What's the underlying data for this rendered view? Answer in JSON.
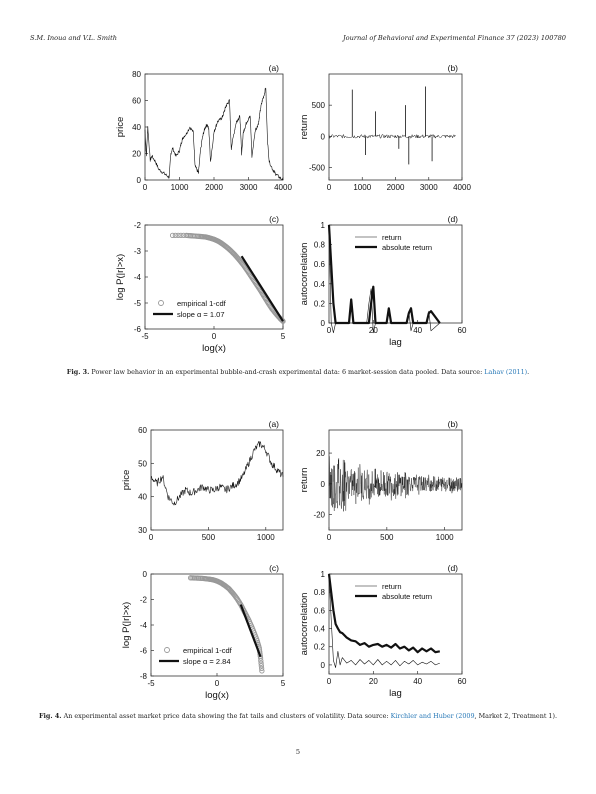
{
  "header": {
    "left": "S.M. Inoua and V.L. Smith",
    "right": "Journal of Behavioral and Experimental Finance 37 (2023) 100780"
  },
  "figures": [
    {
      "label": "Fig. 3.",
      "caption": "Power law behavior in an experimental bubble-and-crash experimental data: 6 market-session data pooled. Data source: ",
      "source_link": "Lahav (2011)",
      "caption_tail": "."
    },
    {
      "label": "Fig. 4.",
      "caption": "An experimental asset market price data showing the fat tails and clusters of volatility. Data source: ",
      "source_link": "Kirchler and Huber (2009",
      "caption_tail": ", Market 2, Treatment 1)."
    }
  ],
  "page_number": "5",
  "chart_data": [
    {
      "panel": "(a)",
      "type": "line",
      "ylabel": "price",
      "xlim": [
        0,
        4000
      ],
      "ylim": [
        0,
        80
      ],
      "xticks": [
        "0",
        "1000",
        "2000",
        "3000",
        "4000"
      ],
      "yticks": [
        "0",
        "20",
        "40",
        "60",
        "80"
      ],
      "series": [
        {
          "x": [
            0,
            40,
            80,
            150,
            200,
            300,
            400,
            500,
            600,
            700,
            750,
            800,
            900,
            1000,
            1050,
            1100,
            1200,
            1300,
            1400,
            1450,
            1500,
            1550,
            1600,
            1650,
            1700,
            1750,
            1800,
            1850,
            1900,
            2000,
            2050,
            2100,
            2200,
            2250,
            2300,
            2350,
            2400,
            2450,
            2500,
            2600,
            2650,
            2700,
            2750,
            2800,
            2850,
            2900,
            2950,
            3000,
            3050,
            3100,
            3200,
            3250,
            3300,
            3350,
            3400,
            3450,
            3500,
            3550,
            3600,
            3700,
            3750,
            3800,
            3900,
            4000
          ],
          "y": [
            38,
            18,
            40,
            15,
            18,
            14,
            8,
            6,
            4,
            2,
            20,
            24,
            18,
            22,
            28,
            32,
            35,
            40,
            36,
            12,
            8,
            5,
            20,
            30,
            36,
            40,
            42,
            38,
            14,
            36,
            40,
            44,
            46,
            48,
            52,
            56,
            58,
            60,
            24,
            38,
            44,
            46,
            48,
            20,
            36,
            40,
            44,
            46,
            48,
            18,
            38,
            40,
            44,
            54,
            60,
            64,
            70,
            30,
            14,
            8,
            6,
            4,
            2,
            0
          ]
        }
      ]
    },
    {
      "panel": "(b)",
      "type": "line",
      "ylabel": "return",
      "xlim": [
        0,
        4000
      ],
      "ylim": [
        -700,
        1000
      ],
      "xticks": [
        "0",
        "1000",
        "2000",
        "3000",
        "4000"
      ],
      "yticks": [
        "-500",
        "0",
        "500"
      ],
      "spikes": {
        "x": [
          700,
          1100,
          1400,
          2100,
          2300,
          2400,
          2900,
          3100
        ],
        "y": [
          750,
          -300,
          400,
          -200,
          500,
          -450,
          800,
          -400
        ]
      }
    },
    {
      "panel": "(c)",
      "type": "scatter",
      "xlabel": "log(x)",
      "ylabel": "log P(|r|>x)",
      "xlim": [
        -5,
        5
      ],
      "ylim": [
        -6,
        -2
      ],
      "xticks": [
        "-5",
        "0",
        "5"
      ],
      "yticks": [
        "-6",
        "-5",
        "-4",
        "-3",
        "-2"
      ],
      "legend": [
        "empirical 1-cdf",
        "slope α = 1.07"
      ],
      "points": {
        "x": [
          -3,
          -2,
          -1.5,
          -1,
          -0.6,
          -0.3,
          0,
          0.3,
          0.6,
          0.9,
          1.2,
          1.5,
          1.8,
          2.1,
          2.4,
          2.7,
          3,
          3.3,
          3.6,
          3.9,
          4.2,
          4.5,
          4.8,
          5
        ],
        "y": [
          -2.4,
          -2.4,
          -2.42,
          -2.44,
          -2.46,
          -2.5,
          -2.55,
          -2.62,
          -2.72,
          -2.84,
          -2.98,
          -3.14,
          -3.32,
          -3.52,
          -3.74,
          -3.98,
          -4.22,
          -4.46,
          -4.72,
          -4.98,
          -5.22,
          -5.42,
          -5.6,
          -5.7
        ]
      },
      "fit": {
        "x": [
          2,
          5
        ],
        "y": [
          -3.2,
          -5.7
        ]
      }
    },
    {
      "panel": "(d)",
      "type": "line",
      "xlabel": "lag",
      "ylabel": "autocorrelation",
      "xlim": [
        0,
        60
      ],
      "ylim": [
        0,
        1
      ],
      "xticks": [
        "0",
        "20",
        "40",
        "60"
      ],
      "yticks": [
        "0",
        "0.2",
        "0.4",
        "0.6",
        "0.8",
        "1"
      ],
      "legend": [
        "return",
        "absolute return"
      ],
      "series": [
        {
          "name": "return",
          "x": [
            0,
            1,
            2,
            3,
            9,
            10,
            11,
            17,
            18,
            19,
            20,
            21,
            22,
            26,
            27,
            28,
            35,
            36,
            37,
            38,
            44,
            45,
            46,
            50
          ],
          "y": [
            1,
            0,
            -0.1,
            0,
            0,
            0.2,
            0,
            0,
            0.2,
            0.35,
            -0.1,
            0,
            0,
            0,
            0.12,
            0,
            0,
            0.12,
            -0.08,
            0,
            0,
            0.12,
            -0.08,
            0
          ]
        },
        {
          "name": "absolute return",
          "x": [
            0,
            1,
            2,
            3,
            9,
            10,
            11,
            18,
            19,
            20,
            21,
            26,
            27,
            28,
            35,
            36,
            37,
            38,
            44,
            45,
            46,
            50
          ],
          "y": [
            1,
            0.6,
            0.2,
            0,
            0,
            0.24,
            0,
            0,
            0.2,
            0.37,
            0,
            0,
            0.15,
            0,
            0,
            0.1,
            0.15,
            0,
            0,
            0.1,
            0.12,
            0
          ]
        }
      ]
    },
    {
      "panel": "(a)",
      "type": "line",
      "ylabel": "price",
      "xlim": [
        0,
        1150
      ],
      "ylim": [
        30,
        60
      ],
      "xticks": [
        "0",
        "500",
        "1000"
      ],
      "yticks": [
        "30",
        "40",
        "50",
        "60"
      ],
      "series": [
        {
          "x": [
            0,
            50,
            100,
            150,
            200,
            250,
            300,
            350,
            400,
            450,
            500,
            550,
            600,
            650,
            700,
            750,
            800,
            850,
            900,
            950,
            1000,
            1050,
            1100,
            1150
          ],
          "y": [
            46,
            44,
            46,
            40,
            38,
            40,
            42,
            41,
            42,
            43,
            42,
            42,
            43,
            42,
            43,
            44,
            46,
            50,
            54,
            56,
            54,
            50,
            48,
            46
          ]
        }
      ]
    },
    {
      "panel": "(b)",
      "type": "line",
      "ylabel": "return",
      "xlim": [
        0,
        1150
      ],
      "ylim": [
        -30,
        35
      ],
      "xticks": [
        "0",
        "500",
        "1000"
      ],
      "yticks": [
        "-20",
        "0",
        "20"
      ]
    },
    {
      "panel": "(c)",
      "type": "scatter",
      "xlabel": "log(x)",
      "ylabel": "log P(|r|>x)",
      "xlim": [
        -5,
        5
      ],
      "ylim": [
        -8,
        0
      ],
      "xticks": [
        "-5",
        "0",
        "5"
      ],
      "yticks": [
        "-8",
        "-6",
        "-4",
        "-2",
        "0"
      ],
      "legend": [
        "empirical 1-cdf",
        "slope α = 2.84"
      ],
      "points": {
        "x": [
          -2,
          -1.5,
          -1,
          -0.6,
          -0.3,
          0,
          0.3,
          0.6,
          0.9,
          1.2,
          1.5,
          1.8,
          2.1,
          2.4,
          2.7,
          3,
          3.2,
          3.3,
          3.4
        ],
        "y": [
          -0.3,
          -0.32,
          -0.35,
          -0.4,
          -0.45,
          -0.55,
          -0.7,
          -0.9,
          -1.15,
          -1.5,
          -1.9,
          -2.4,
          -3,
          -3.6,
          -4.3,
          -5.1,
          -5.8,
          -6.6,
          -7.6
        ]
      },
      "fit": {
        "x": [
          1.8,
          3.3
        ],
        "y": [
          -2.4,
          -6.5
        ]
      }
    },
    {
      "panel": "(d)",
      "type": "line",
      "xlabel": "lag",
      "ylabel": "autocorrelation",
      "xlim": [
        0,
        60
      ],
      "ylim": [
        -0.1,
        1
      ],
      "xticks": [
        "0",
        "20",
        "40",
        "60"
      ],
      "yticks": [
        "0",
        "0.2",
        "0.4",
        "0.6",
        "0.8",
        "1"
      ],
      "legend": [
        "return",
        "absolute return"
      ],
      "series": [
        {
          "name": "return",
          "x": [
            0,
            1,
            2,
            3,
            4,
            5,
            6,
            8,
            10,
            12,
            14,
            16,
            18,
            20,
            22,
            24,
            26,
            28,
            30,
            32,
            34,
            36,
            38,
            40,
            42,
            44,
            46,
            48,
            50
          ],
          "y": [
            1,
            0.5,
            0.05,
            -0.03,
            0.15,
            0,
            0.08,
            0.02,
            0.05,
            0,
            0.06,
            0.01,
            0.05,
            0,
            0.06,
            0,
            0.04,
            0,
            0.05,
            -0.01,
            0.04,
            0.01,
            0.05,
            0,
            0.03,
            0.01,
            0.04,
            0,
            0.02
          ]
        },
        {
          "name": "absolute return",
          "x": [
            0,
            1,
            2,
            3,
            4,
            5,
            6,
            8,
            10,
            12,
            14,
            16,
            18,
            20,
            22,
            24,
            26,
            28,
            30,
            32,
            34,
            36,
            38,
            40,
            42,
            44,
            46,
            48,
            50
          ],
          "y": [
            1,
            0.8,
            0.6,
            0.45,
            0.4,
            0.36,
            0.35,
            0.3,
            0.27,
            0.26,
            0.22,
            0.24,
            0.2,
            0.22,
            0.23,
            0.2,
            0.22,
            0.19,
            0.23,
            0.18,
            0.2,
            0.16,
            0.19,
            0.14,
            0.18,
            0.15,
            0.18,
            0.14,
            0.15
          ]
        }
      ]
    }
  ]
}
